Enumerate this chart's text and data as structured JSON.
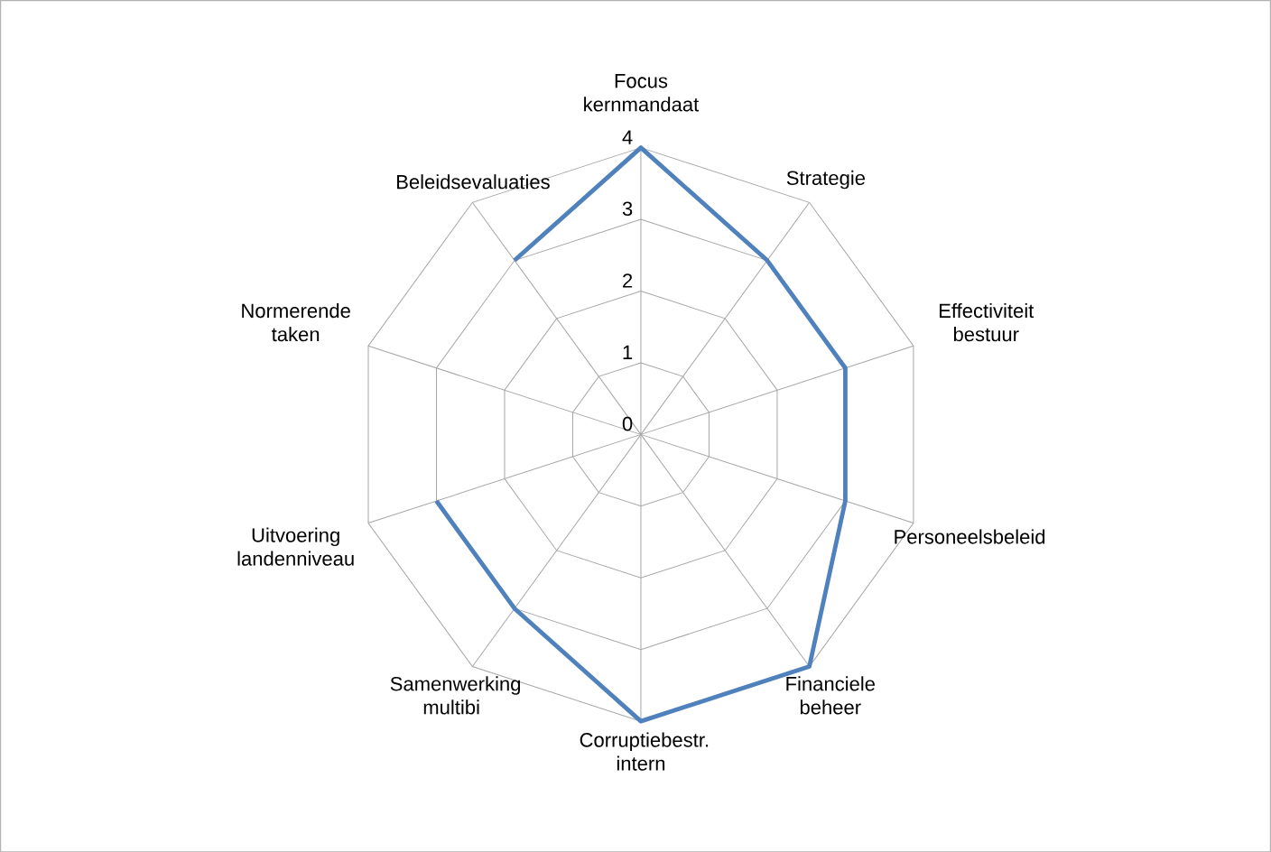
{
  "chart_data": {
    "type": "radar",
    "categories": [
      "Focus kernmandaat",
      "Strategie",
      "Effectiviteit bestuur",
      "Personeelsbeleid",
      "Financiele beheer",
      "Corruptiebestr. intern",
      "Samenwerking multibi",
      "Uitvoering landenniveau",
      "Normerende taken",
      "Beleidsevaluaties"
    ],
    "series": [
      {
        "color": "#4f81bd",
        "values": [
          4,
          3,
          3,
          3,
          4,
          4,
          3,
          3,
          null,
          3
        ]
      }
    ],
    "ylim": [
      0,
      4
    ],
    "yticks": [
      0,
      1,
      2,
      3,
      4
    ],
    "grid": true,
    "line_style": "solid"
  }
}
